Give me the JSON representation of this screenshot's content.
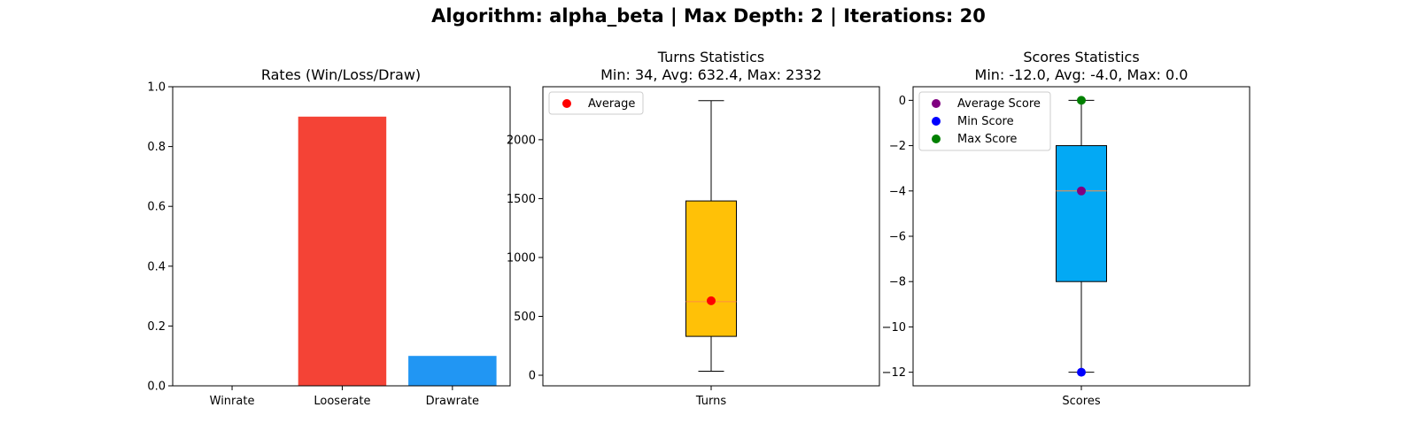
{
  "figure": {
    "suptitle": "Algorithm: alpha_beta | Max Depth: 2 | Iterations: 20"
  },
  "chart_data": [
    {
      "type": "bar",
      "title": "Rates (Win/Loss/Draw)",
      "categories": [
        "Winrate",
        "Looserate",
        "Drawrate"
      ],
      "values": [
        0.0,
        0.9,
        0.1
      ],
      "colors": [
        "#4caf50",
        "#f44336",
        "#2196f3"
      ],
      "ylim": [
        0,
        1.0
      ],
      "yticks": [
        "0.0",
        "0.2",
        "0.4",
        "0.6",
        "0.8",
        "1.0"
      ],
      "grid": false
    },
    {
      "type": "box",
      "title": "Turns Statistics",
      "subtitle": "Min: 34, Avg: 632.4, Max: 2332",
      "category": "Turns",
      "box": {
        "min": 34,
        "q1": 330,
        "median": 625,
        "q3": 1480,
        "max": 2332
      },
      "box_color": "#ffc107",
      "median_color": "#ff8c42",
      "markers": [
        {
          "name": "Average",
          "value": 632.4,
          "color": "#ff0000"
        }
      ],
      "ylim": [
        -90,
        2450
      ],
      "yticks": [
        "0",
        "500",
        "1000",
        "1500",
        "2000"
      ],
      "legend": {
        "position": "top-left",
        "entries": [
          "Average"
        ]
      },
      "grid": false
    },
    {
      "type": "box",
      "title": "Scores Statistics",
      "subtitle": "Min: -12.0, Avg: -4.0, Max: 0.0",
      "category": "Scores",
      "box": {
        "min": -12,
        "q1": -8,
        "median": -4,
        "q3": -2,
        "max": 0
      },
      "box_color": "#03a9f4",
      "median_color": "#ff8c42",
      "markers": [
        {
          "name": "Average Score",
          "value": -4.0,
          "color": "#800080"
        },
        {
          "name": "Min Score",
          "value": -12.0,
          "color": "#0000ff"
        },
        {
          "name": "Max Score",
          "value": 0.0,
          "color": "#008000"
        }
      ],
      "ylim": [
        -12.6,
        0.6
      ],
      "yticks": [
        "0",
        "−2",
        "−4",
        "−6",
        "−8",
        "−10",
        "−12"
      ],
      "legend": {
        "position": "top-left",
        "entries": [
          "Average Score",
          "Min Score",
          "Max Score"
        ]
      },
      "grid": false
    }
  ]
}
